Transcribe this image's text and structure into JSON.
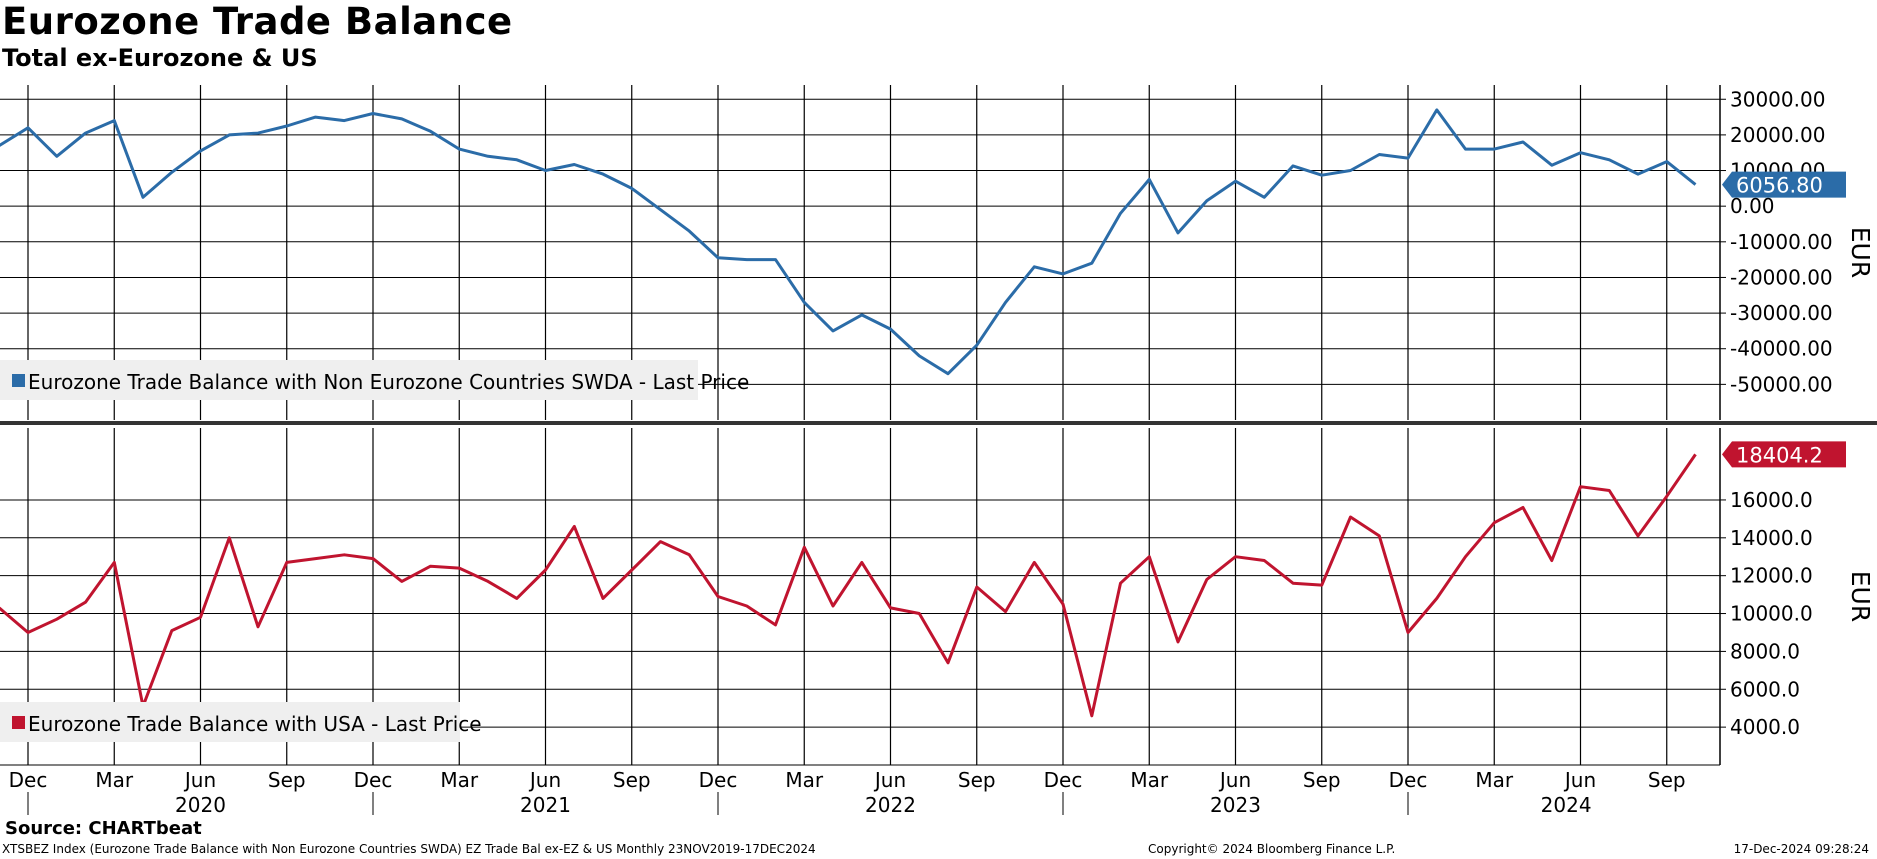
{
  "title": "Eurozone Trade Balance",
  "subtitle": "Total ex-Eurozone & US",
  "footer": {
    "source": "Source: CHARTbeat",
    "description": "XTSBEZ Index (Eurozone Trade Balance with Non Eurozone Countries SWDA) EZ Trade Bal ex-EZ & US  Monthly 23NOV2019-17DEC2024",
    "copyright": "Copyright© 2024 Bloomberg Finance L.P.",
    "timestamp": "17-Dec-2024 09:28:24"
  },
  "colors": {
    "top_series": "#2b6ca8",
    "bottom_series": "#c0142f",
    "legend_bg": "#efefef"
  },
  "chart_data": [
    {
      "type": "line",
      "name": "top-panel",
      "series_name": "Eurozone Trade Balance with Non Eurozone Countries SWDA - Last Price",
      "unit_label": "EUR",
      "ylim": [
        -60000,
        34000
      ],
      "yticks": [
        30000,
        20000,
        10000,
        0,
        -10000,
        -20000,
        -30000,
        -40000,
        -50000
      ],
      "ytick_labels": [
        "30000.00",
        "20000.00",
        "10000.00",
        "0.00",
        "-10000.00",
        "-20000.00",
        "-30000.00",
        "-40000.00",
        "-50000.00"
      ],
      "last_value_label": "6056.80",
      "x": [
        "Nov 2019",
        "Dec 2019",
        "Jan 2020",
        "Feb 2020",
        "Mar 2020",
        "Apr 2020",
        "May 2020",
        "Jun 2020",
        "Jul 2020",
        "Aug 2020",
        "Sep 2020",
        "Oct 2020",
        "Nov 2020",
        "Dec 2020",
        "Jan 2021",
        "Feb 2021",
        "Mar 2021",
        "Apr 2021",
        "May 2021",
        "Jun 2021",
        "Jul 2021",
        "Aug 2021",
        "Sep 2021",
        "Oct 2021",
        "Nov 2021",
        "Dec 2021",
        "Jan 2022",
        "Feb 2022",
        "Mar 2022",
        "Apr 2022",
        "May 2022",
        "Jun 2022",
        "Jul 2022",
        "Aug 2022",
        "Sep 2022",
        "Oct 2022",
        "Nov 2022",
        "Dec 2022",
        "Jan 2023",
        "Feb 2023",
        "Mar 2023",
        "Apr 2023",
        "May 2023",
        "Jun 2023",
        "Jul 2023",
        "Aug 2023",
        "Sep 2023",
        "Oct 2023",
        "Nov 2023",
        "Dec 2023",
        "Jan 2024",
        "Feb 2024",
        "Mar 2024",
        "Apr 2024",
        "May 2024",
        "Jun 2024",
        "Jul 2024",
        "Aug 2024",
        "Sep 2024",
        "Oct 2024"
      ],
      "values": [
        17000,
        22000,
        14000,
        20500,
        24000,
        2500,
        9500,
        15500,
        20000,
        20500,
        22500,
        25000,
        24000,
        26000,
        24500,
        21000,
        16000,
        14000,
        13000,
        10000,
        11700,
        9000,
        5000,
        -1000,
        -7000,
        -14500,
        -15000,
        -15000,
        -27000,
        -35000,
        -30500,
        -34500,
        -42000,
        -47000,
        -39000,
        -27000,
        -17000,
        -19000,
        -16000,
        -2000,
        7500,
        -7500,
        1500,
        7000,
        2500,
        11300,
        8700,
        10000,
        14500,
        13500,
        27000,
        16000,
        16000,
        18000,
        11500,
        15000,
        13000,
        9000,
        12500,
        6056.8
      ]
    },
    {
      "type": "line",
      "name": "bottom-panel",
      "series_name": "Eurozone Trade Balance with USA - Last Price",
      "unit_label": "EUR",
      "ylim": [
        2000,
        19800
      ],
      "yticks": [
        16000,
        14000,
        12000,
        10000,
        8000,
        6000,
        4000
      ],
      "ytick_labels": [
        "16000.0",
        "14000.0",
        "12000.0",
        "10000.0",
        "8000.0",
        "6000.0",
        "4000.0"
      ],
      "last_value_label": "18404.2",
      "x": [
        "Nov 2019",
        "Dec 2019",
        "Jan 2020",
        "Feb 2020",
        "Mar 2020",
        "Apr 2020",
        "May 2020",
        "Jun 2020",
        "Jul 2020",
        "Aug 2020",
        "Sep 2020",
        "Oct 2020",
        "Nov 2020",
        "Dec 2020",
        "Jan 2021",
        "Feb 2021",
        "Mar 2021",
        "Apr 2021",
        "May 2021",
        "Jun 2021",
        "Jul 2021",
        "Aug 2021",
        "Sep 2021",
        "Oct 2021",
        "Nov 2021",
        "Dec 2021",
        "Jan 2022",
        "Feb 2022",
        "Mar 2022",
        "Apr 2022",
        "May 2022",
        "Jun 2022",
        "Jul 2022",
        "Aug 2022",
        "Sep 2022",
        "Oct 2022",
        "Nov 2022",
        "Dec 2022",
        "Jan 2023",
        "Feb 2023",
        "Mar 2023",
        "Apr 2023",
        "May 2023",
        "Jun 2023",
        "Jul 2023",
        "Aug 2023",
        "Sep 2023",
        "Oct 2023",
        "Nov 2023",
        "Dec 2023",
        "Jan 2024",
        "Feb 2024",
        "Mar 2024",
        "Apr 2024",
        "May 2024",
        "Jun 2024",
        "Jul 2024",
        "Aug 2024",
        "Sep 2024",
        "Oct 2024"
      ],
      "values": [
        10300,
        9000,
        9700,
        10600,
        12700,
        5100,
        9100,
        9800,
        14000,
        9300,
        12700,
        12900,
        13100,
        12900,
        11700,
        12500,
        12400,
        11700,
        10800,
        12300,
        14600,
        10800,
        12300,
        13800,
        13100,
        10900,
        10400,
        9400,
        13500,
        10400,
        12700,
        10300,
        10000,
        7400,
        11400,
        10100,
        12700,
        10500,
        4600,
        11600,
        13000,
        8500,
        11800,
        13000,
        12800,
        11600,
        11500,
        15100,
        14100,
        9000,
        10800,
        13000,
        14800,
        15600,
        12800,
        16700,
        16500,
        14100,
        16200,
        18404.2
      ]
    }
  ],
  "x_axis": {
    "month_ticks": [
      {
        "label": "Dec",
        "index": 1
      },
      {
        "label": "Mar",
        "index": 4
      },
      {
        "label": "Jun",
        "index": 7
      },
      {
        "label": "Sep",
        "index": 10
      },
      {
        "label": "Dec",
        "index": 13
      },
      {
        "label": "Mar",
        "index": 16
      },
      {
        "label": "Jun",
        "index": 19
      },
      {
        "label": "Sep",
        "index": 22
      },
      {
        "label": "Dec",
        "index": 25
      },
      {
        "label": "Mar",
        "index": 28
      },
      {
        "label": "Jun",
        "index": 31
      },
      {
        "label": "Sep",
        "index": 34
      },
      {
        "label": "Dec",
        "index": 37
      },
      {
        "label": "Mar",
        "index": 40
      },
      {
        "label": "Jun",
        "index": 43
      },
      {
        "label": "Sep",
        "index": 46
      },
      {
        "label": "Dec",
        "index": 49
      },
      {
        "label": "Mar",
        "index": 52
      },
      {
        "label": "Jun",
        "index": 55
      },
      {
        "label": "Sep",
        "index": 58
      }
    ],
    "year_labels": [
      {
        "label": "2020",
        "start": 1,
        "end": 13
      },
      {
        "label": "2021",
        "start": 13,
        "end": 25
      },
      {
        "label": "2022",
        "start": 25,
        "end": 37
      },
      {
        "label": "2023",
        "start": 37,
        "end": 49
      },
      {
        "label": "2024",
        "start": 49,
        "end": 60
      }
    ]
  }
}
